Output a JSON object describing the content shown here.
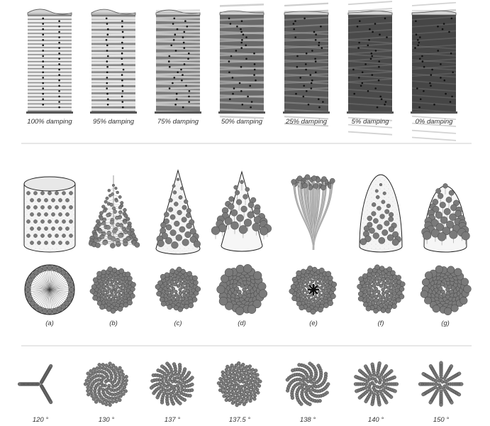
{
  "damping": {
    "labels": [
      "100% damping",
      "95% damping",
      "75% damping",
      "50% damping",
      "25% damping",
      "5% damping",
      "0% damping"
    ],
    "values": [
      100,
      95,
      75,
      50,
      25,
      5,
      0
    ]
  },
  "shapes": {
    "labels": [
      "(a)",
      "(b)",
      "(c)",
      "(d)",
      "(e)",
      "(f)",
      "(g)"
    ]
  },
  "angles": {
    "labels": [
      "120 °",
      "130 °",
      "137 °",
      "137.5 °",
      "138 °",
      "140 °",
      "150 °"
    ],
    "values": [
      120,
      130,
      137,
      137.5,
      138,
      140,
      150
    ]
  },
  "colors": {
    "dot": "#7a7a7a",
    "dot_stroke": "#3a3a3a",
    "divider": "#cfcfcf",
    "surface": "#f2f2f2"
  }
}
